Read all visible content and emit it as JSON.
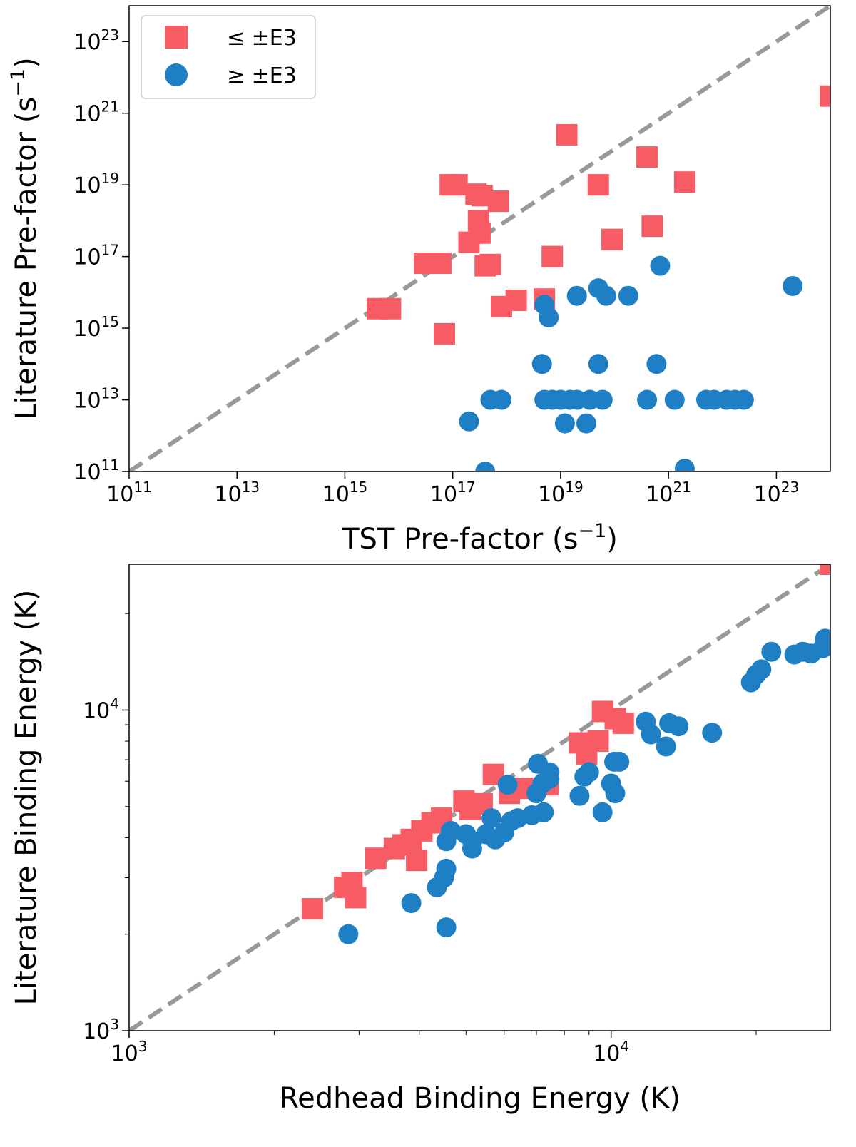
{
  "chart_data": [
    {
      "type": "scatter",
      "xscale": "log",
      "yscale": "log",
      "xlabel": "TST Pre-factor (s",
      "ylabel": "Literature Pre-factor (s",
      "unit_exponent": "−1",
      "label_close": ")",
      "xlim": [
        100000000000.0,
        1e+24
      ],
      "ylim": [
        100000000000.0,
        1e+24
      ],
      "tick_base": "10",
      "xticks": [
        {
          "value": 100000000000.0,
          "exp": "11"
        },
        {
          "value": 10000000000000.0,
          "exp": "13"
        },
        {
          "value": 1000000000000000.0,
          "exp": "15"
        },
        {
          "value": 1e+17,
          "exp": "17"
        },
        {
          "value": 1e+19,
          "exp": "19"
        },
        {
          "value": 1e+21,
          "exp": "21"
        },
        {
          "value": 1e+23,
          "exp": "23"
        }
      ],
      "yticks": [
        {
          "value": 100000000000.0,
          "exp": "11"
        },
        {
          "value": 10000000000000.0,
          "exp": "13"
        },
        {
          "value": 1000000000000000.0,
          "exp": "15"
        },
        {
          "value": 1e+17,
          "exp": "17"
        },
        {
          "value": 1e+19,
          "exp": "19"
        },
        {
          "value": 1e+21,
          "exp": "21"
        },
        {
          "value": 1e+23,
          "exp": "23"
        }
      ],
      "legend": {
        "placement": "top-left",
        "entries": [
          {
            "label": "≤ ±E3",
            "series": "le"
          },
          {
            "label": "≥ ±E3",
            "series": "ge"
          }
        ]
      },
      "reference_line": "y = x",
      "series": [
        {
          "name": "≤ ±E3",
          "marker": "square",
          "color": "#f75c65",
          "points": [
            [
              4000000000000000.0,
              3500000000000000.0
            ],
            [
              7000000000000000.0,
              3500000000000000.0
            ],
            [
              3e+16,
              6.5e+16
            ],
            [
              5e+16,
              6.5e+16
            ],
            [
              6e+16,
              6.5e+16
            ],
            [
              7e+16,
              700000000000000.0
            ],
            [
              9e+16,
              1e+19
            ],
            [
              1.2e+17,
              1e+19
            ],
            [
              2e+17,
              2.5e+17
            ],
            [
              3e+17,
              1e+18
            ],
            [
              2.7e+17,
              5.5e+18
            ],
            [
              3.2e+17,
              4.5e+17
            ],
            [
              3.5e+17,
              5e+18
            ],
            [
              4e+17,
              5.5e+16
            ],
            [
              5e+17,
              6e+16
            ],
            [
              7e+17,
              3.5e+18
            ],
            [
              8e+17,
              4000000000000000.0
            ],
            [
              1.5e+18,
              6000000000000000.0
            ],
            [
              5e+18,
              6500000000000000.0
            ],
            [
              7e+18,
              1e+17
            ],
            [
              1.3e+19,
              2.5e+20
            ],
            [
              5e+19,
              1e+19
            ],
            [
              9e+19,
              3e+17
            ],
            [
              4e+20,
              6e+19
            ],
            [
              5e+20,
              7e+17
            ],
            [
              2e+21,
              1.2e+19
            ],
            [
              1e+24,
              3e+21
            ]
          ]
        },
        {
          "name": "≥ ±E3",
          "marker": "circle",
          "color": "#1f7fc4",
          "points": [
            [
              2e+17,
              2500000000000.0
            ],
            [
              4e+17,
              100000000000.0
            ],
            [
              5e+17,
              10000000000000.0
            ],
            [
              8e+17,
              10000000000000.0
            ],
            [
              4.5e+18,
              100000000000000.0
            ],
            [
              5e+18,
              10000000000000.0
            ],
            [
              7e+18,
              10000000000000.0
            ],
            [
              5e+18,
              4500000000000000.0
            ],
            [
              6e+18,
              2000000000000000.0
            ],
            [
              1e+19,
              10000000000000.0
            ],
            [
              1.5e+19,
              10000000000000.0
            ],
            [
              2e+19,
              10000000000000.0
            ],
            [
              1.2e+19,
              2200000000000.0
            ],
            [
              2e+19,
              8000000000000000.0
            ],
            [
              3.5e+19,
              10000000000000.0
            ],
            [
              3e+19,
              2200000000000.0
            ],
            [
              5e+19,
              100000000000000.0
            ],
            [
              5e+19,
              1.3e+16
            ],
            [
              7e+19,
              8000000000000000.0
            ],
            [
              6e+19,
              10000000000000.0
            ],
            [
              1.8e+20,
              8000000000000000.0
            ],
            [
              4e+20,
              10000000000000.0
            ],
            [
              6e+20,
              100000000000000.0
            ],
            [
              7e+20,
              5.5e+16
            ],
            [
              1.3e+21,
              10000000000000.0
            ],
            [
              2e+21,
              120000000000.0
            ],
            [
              5e+21,
              10000000000000.0
            ],
            [
              7e+21,
              10000000000000.0
            ],
            [
              1.2e+22,
              10000000000000.0
            ],
            [
              1.7e+22,
              10000000000000.0
            ],
            [
              2.5e+22,
              10000000000000.0
            ],
            [
              2e+23,
              1.5e+16
            ]
          ]
        }
      ]
    },
    {
      "type": "scatter",
      "xscale": "log",
      "yscale": "log",
      "xlabel": "Redhead Binding Energy (K)",
      "ylabel": "Literature Binding Energy (K)",
      "xlim": [
        1000,
        28500
      ],
      "ylim": [
        1000,
        28500
      ],
      "tick_base": "10",
      "xticks": [
        {
          "value": 1000,
          "exp": "3"
        },
        {
          "value": 10000,
          "exp": "4"
        }
      ],
      "yticks": [
        {
          "value": 1000,
          "exp": "3"
        },
        {
          "value": 10000,
          "exp": "4"
        }
      ],
      "reference_line": "y = x",
      "series": [
        {
          "name": "≤ ±E3",
          "marker": "square",
          "color": "#f75c65",
          "points": [
            [
              2400,
              2400
            ],
            [
              2800,
              2800
            ],
            [
              2900,
              2900
            ],
            [
              2950,
              2600
            ],
            [
              3250,
              3450
            ],
            [
              3550,
              3700
            ],
            [
              3700,
              3800
            ],
            [
              3850,
              3950
            ],
            [
              3950,
              3400
            ],
            [
              4050,
              4200
            ],
            [
              4250,
              4450
            ],
            [
              4450,
              4600
            ],
            [
              4950,
              5200
            ],
            [
              5100,
              4900
            ],
            [
              5400,
              5100
            ],
            [
              5700,
              6300
            ],
            [
              6150,
              5500
            ],
            [
              6550,
              5700
            ],
            [
              7400,
              5850
            ],
            [
              8600,
              7900
            ],
            [
              8900,
              7300
            ],
            [
              9400,
              8000
            ],
            [
              9600,
              9900
            ],
            [
              10200,
              9400
            ],
            [
              10600,
              9100
            ],
            [
              28500,
              28500
            ]
          ]
        },
        {
          "name": "≥ ±E3",
          "marker": "circle",
          "color": "#1f7fc4",
          "points": [
            [
              2850,
              2000
            ],
            [
              3850,
              2500
            ],
            [
              4350,
              2800
            ],
            [
              4500,
              3000
            ],
            [
              4550,
              3200
            ],
            [
              4550,
              2100
            ],
            [
              4550,
              3900
            ],
            [
              4650,
              4200
            ],
            [
              5000,
              4100
            ],
            [
              5150,
              3700
            ],
            [
              5150,
              3900
            ],
            [
              5500,
              4100
            ],
            [
              5650,
              4600
            ],
            [
              5750,
              3950
            ],
            [
              6000,
              4150
            ],
            [
              6200,
              4500
            ],
            [
              6400,
              4600
            ],
            [
              6100,
              5850
            ],
            [
              6850,
              4700
            ],
            [
              7000,
              5500
            ],
            [
              7050,
              6800
            ],
            [
              7200,
              5900
            ],
            [
              7450,
              6100
            ],
            [
              7250,
              4800
            ],
            [
              7450,
              6400
            ],
            [
              8600,
              5400
            ],
            [
              8800,
              6200
            ],
            [
              9000,
              6400
            ],
            [
              9600,
              4800
            ],
            [
              10000,
              5900
            ],
            [
              10200,
              5500
            ],
            [
              10150,
              6900
            ],
            [
              10400,
              6900
            ],
            [
              11800,
              9200
            ],
            [
              12100,
              8400
            ],
            [
              13000,
              7700
            ],
            [
              13200,
              9100
            ],
            [
              13800,
              8900
            ],
            [
              16200,
              8500
            ],
            [
              19500,
              12200
            ],
            [
              20000,
              12900
            ],
            [
              20500,
              13400
            ],
            [
              21500,
              15200
            ],
            [
              24000,
              14900
            ],
            [
              25000,
              15200
            ],
            [
              26000,
              15000
            ],
            [
              27500,
              15600
            ],
            [
              27800,
              16700
            ]
          ]
        }
      ]
    }
  ]
}
